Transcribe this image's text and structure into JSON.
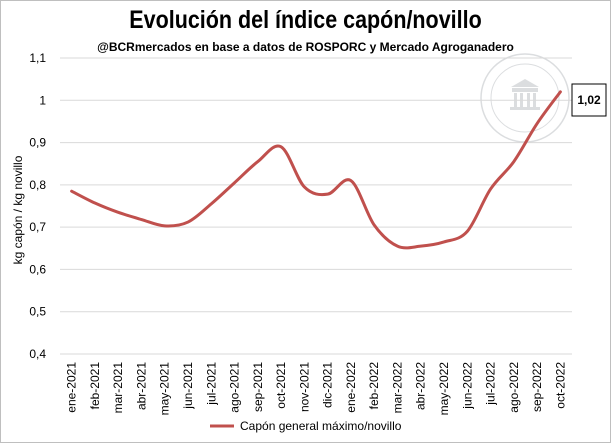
{
  "chart_data": {
    "type": "line",
    "title": "Evolución del índice capón/novillo",
    "subtitle": "@BCRmercados en base a datos de ROSPORC y Mercado Agroganadero",
    "ylabel": "kg capón  / kg novillo",
    "xlabel": "",
    "ylim": [
      0.4,
      1.1
    ],
    "yticks": [
      0.4,
      0.5,
      0.6,
      0.7,
      0.8,
      0.9,
      1.0,
      1.1
    ],
    "ytick_labels": [
      "0,4",
      "0,5",
      "0,6",
      "0,7",
      "0,8",
      "0,9",
      "1",
      "1,1"
    ],
    "categories": [
      "ene-2021",
      "feb-2021",
      "mar-2021",
      "abr-2021",
      "may-2021",
      "jun-2021",
      "jul-2021",
      "ago-2021",
      "sep-2021",
      "oct-2021",
      "nov-2021",
      "dic-2021",
      "ene-2022",
      "feb-2022",
      "mar-2022",
      "abr-2022",
      "may-2022",
      "jun-2022",
      "jul-2022",
      "ago-2022",
      "sep-2022",
      "oct-2022"
    ],
    "series": [
      {
        "name": "Capón general máximo/novillo",
        "color": "#c0504d",
        "values": [
          0.785,
          0.757,
          0.735,
          0.718,
          0.703,
          0.712,
          0.755,
          0.805,
          0.855,
          0.89,
          0.795,
          0.778,
          0.81,
          0.705,
          0.655,
          0.655,
          0.665,
          0.69,
          0.79,
          0.855,
          0.945,
          1.02
        ]
      }
    ],
    "grid": "horizontal",
    "legend": "bottom",
    "callout": {
      "label": "1,02",
      "series": 0,
      "point": 21
    }
  }
}
